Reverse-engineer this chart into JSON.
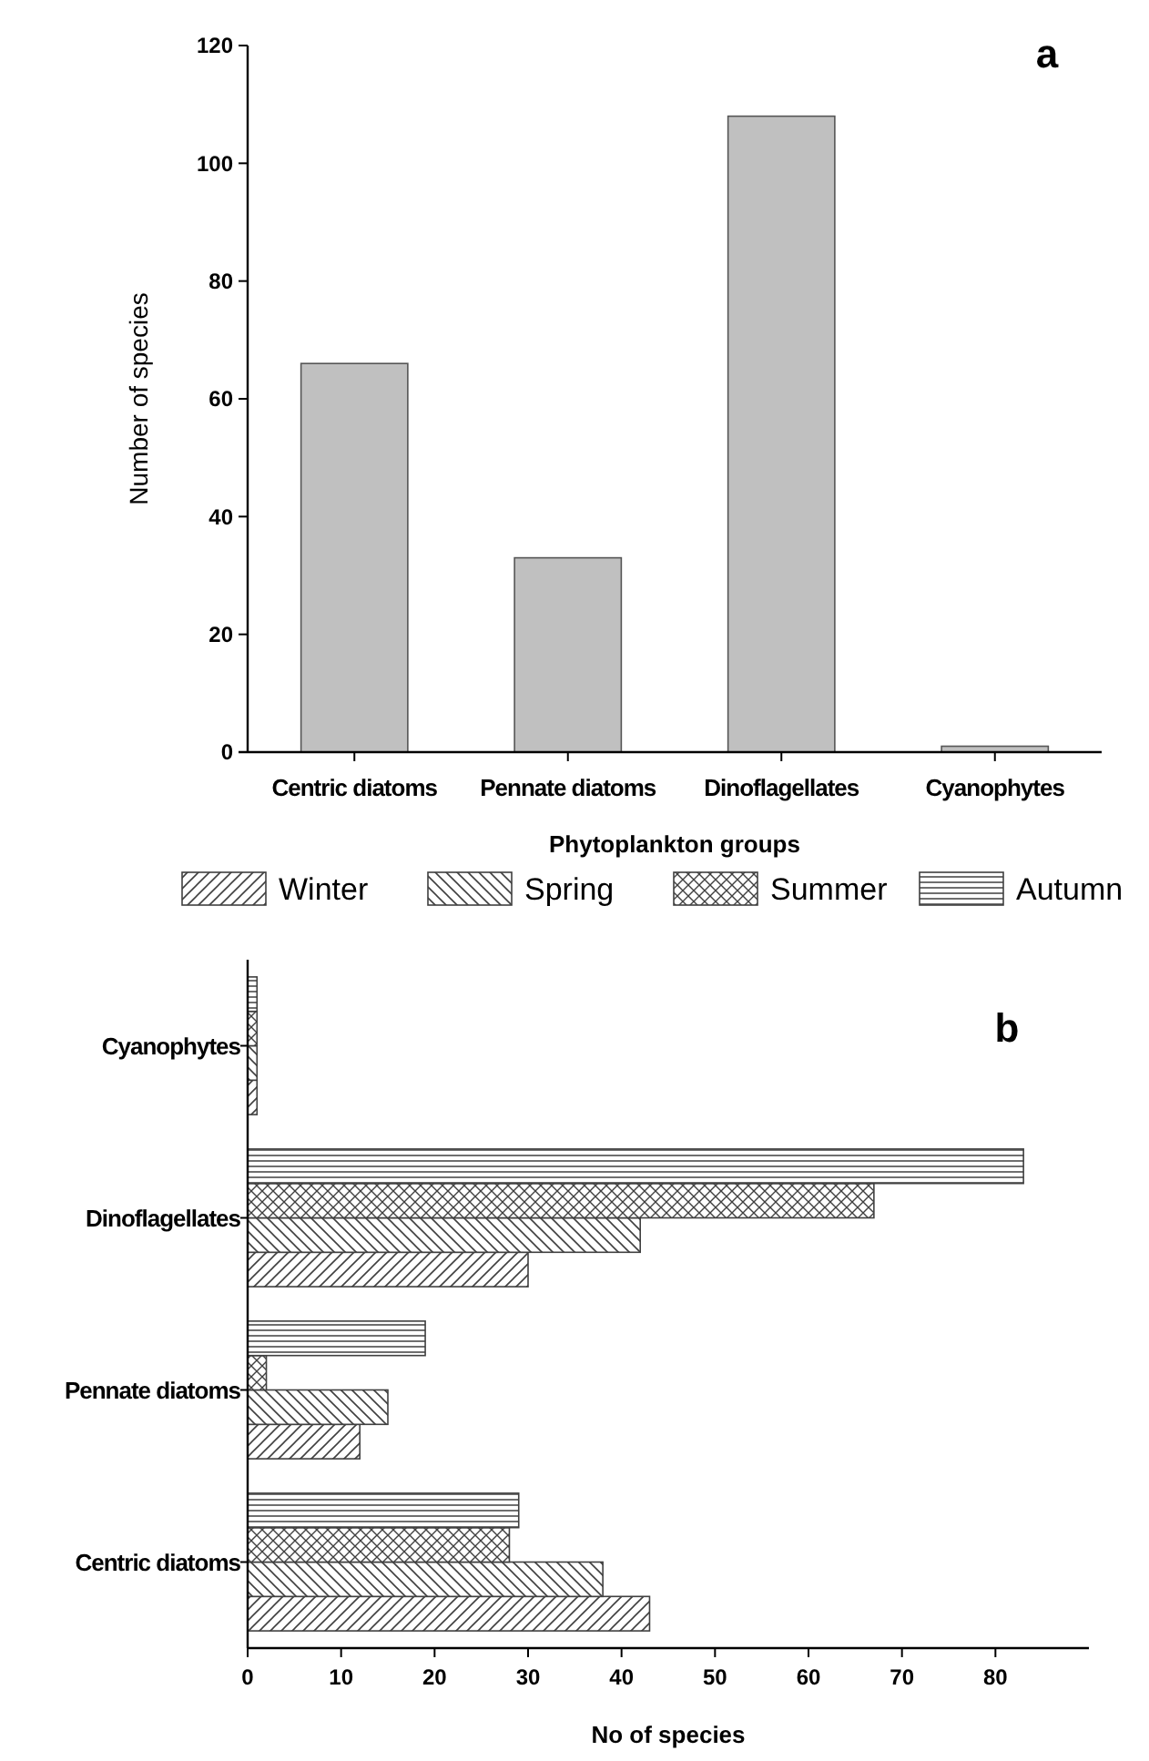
{
  "chart_data": [
    {
      "type": "bar",
      "title": "a",
      "xlabel": "Phytoplankton groups",
      "ylabel": "Number of species",
      "categories": [
        "Centric diatoms",
        "Pennate diatoms",
        "Dinoflagellates",
        "Cyanophytes"
      ],
      "values": [
        66,
        33,
        108,
        1
      ],
      "color": "#c0c0c0",
      "ylim": [
        0,
        120
      ],
      "yticks": [
        0,
        20,
        40,
        60,
        80,
        100,
        120
      ]
    },
    {
      "type": "bar",
      "orientation": "horizontal",
      "title": "b",
      "xlabel": "No of species",
      "categories": [
        "Cyanophytes",
        "Dinoflagellates",
        "Pennate diatoms",
        "Centric diatoms"
      ],
      "xlim": [
        0,
        90
      ],
      "xticks": [
        0,
        10,
        20,
        30,
        40,
        50,
        60,
        70,
        80
      ],
      "legend": "top",
      "series": [
        {
          "name": "Winter",
          "color": "#404040",
          "values": [
            1,
            30,
            12,
            43
          ]
        },
        {
          "name": "Spring",
          "color": "#404040",
          "values": [
            1,
            42,
            15,
            38
          ]
        },
        {
          "name": "Summer",
          "color": "#404040",
          "values": [
            1,
            67,
            2,
            28
          ]
        },
        {
          "name": "Autumn",
          "color": "#404040",
          "values": [
            1,
            83,
            19,
            29
          ]
        }
      ]
    }
  ]
}
